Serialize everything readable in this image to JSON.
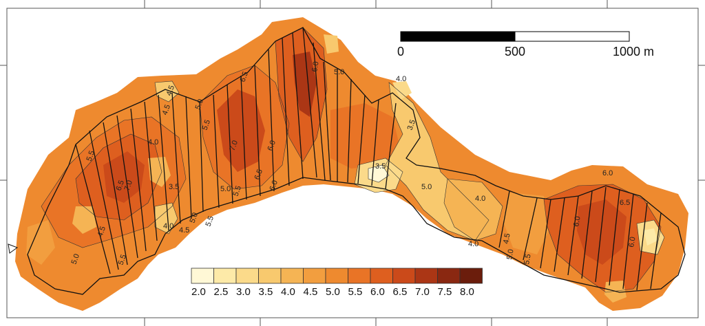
{
  "scale_bar": {
    "labels": [
      "0",
      "500",
      "1000 m"
    ],
    "colors": [
      "#000000",
      "#ffffff"
    ]
  },
  "legend": {
    "values": [
      "2.0",
      "2.5",
      "3.0",
      "3.5",
      "4.0",
      "4.5",
      "5.0",
      "5.5",
      "6.0",
      "6.5",
      "7.0",
      "7.5",
      "8.0"
    ],
    "colors": [
      "#fff8d6",
      "#fdeaa8",
      "#fbda8a",
      "#f8c96e",
      "#f5b454",
      "#f29e3f",
      "#ee8a2f",
      "#e97426",
      "#de5f1f",
      "#cb4a1a",
      "#ab3615",
      "#8a2811",
      "#6b1d0c"
    ]
  },
  "contour_labels": [
    "4.5",
    "5.0",
    "5.5",
    "6.0",
    "6.5",
    "7.0",
    "4.0",
    "3.5",
    "6.5",
    "5.5",
    "5.0",
    "4.5",
    "4.0",
    "6.0",
    "5.0",
    "3.5",
    "5.0",
    "4.0",
    "3.5",
    "4.0",
    "4.5",
    "5.0",
    "5.5",
    "6.0",
    "6.5",
    "6.0",
    "6.0",
    "4.5",
    "5.0",
    "5.5",
    "5.5",
    "4.0",
    "4.5",
    "5.0",
    "5.5",
    "6.0",
    "6.5",
    "7.0"
  ],
  "icons": {
    "arrow": "left-edge-arrow-icon"
  }
}
